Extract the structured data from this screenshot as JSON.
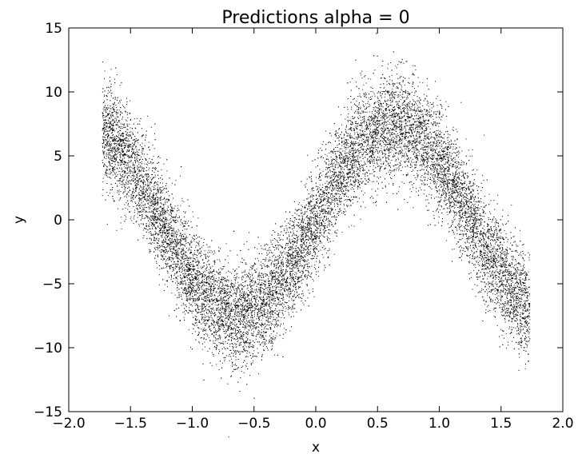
{
  "chart_data": {
    "type": "scatter",
    "title": "Predictions alpha = 0",
    "xlabel": "x",
    "ylabel": "y",
    "xlim": [
      -2.0,
      2.0
    ],
    "ylim": [
      -15,
      15
    ],
    "xticks": [
      -2.0,
      -1.5,
      -1.0,
      -0.5,
      0.0,
      0.5,
      1.0,
      1.5,
      2.0
    ],
    "xtick_labels": [
      "−2.0",
      "−1.5",
      "−1.0",
      "−0.5",
      "0.0",
      "0.5",
      "1.0",
      "1.5",
      "2.0"
    ],
    "yticks": [
      -15,
      -10,
      -5,
      0,
      5,
      10,
      15
    ],
    "ytick_labels": [
      "−15",
      "−10",
      "−5",
      "0",
      "5",
      "10",
      "15"
    ],
    "grid": false,
    "marker_color": "#000000",
    "series": [
      {
        "x_range": [
          -1.73,
          1.73
        ],
        "point_count": 18000,
        "approx_curve": "y = 7.5 * sin(2.5 * x)",
        "spread_sd": 2.0,
        "curve_samples": [
          {
            "x": -1.7,
            "y": 4.0
          },
          {
            "x": -1.5,
            "y": 2.0
          },
          {
            "x": -1.25,
            "y": -1.5
          },
          {
            "x": -1.0,
            "y": -5.0
          },
          {
            "x": -0.75,
            "y": -7.0
          },
          {
            "x": -0.5,
            "y": -6.5
          },
          {
            "x": -0.25,
            "y": -4.0
          },
          {
            "x": 0.0,
            "y": 0.0
          },
          {
            "x": 0.25,
            "y": 4.0
          },
          {
            "x": 0.5,
            "y": 6.5
          },
          {
            "x": 0.75,
            "y": 7.0
          },
          {
            "x": 1.0,
            "y": 5.0
          },
          {
            "x": 1.25,
            "y": 1.5
          },
          {
            "x": 1.5,
            "y": -2.0
          },
          {
            "x": 1.7,
            "y": -5.0
          }
        ]
      }
    ]
  }
}
